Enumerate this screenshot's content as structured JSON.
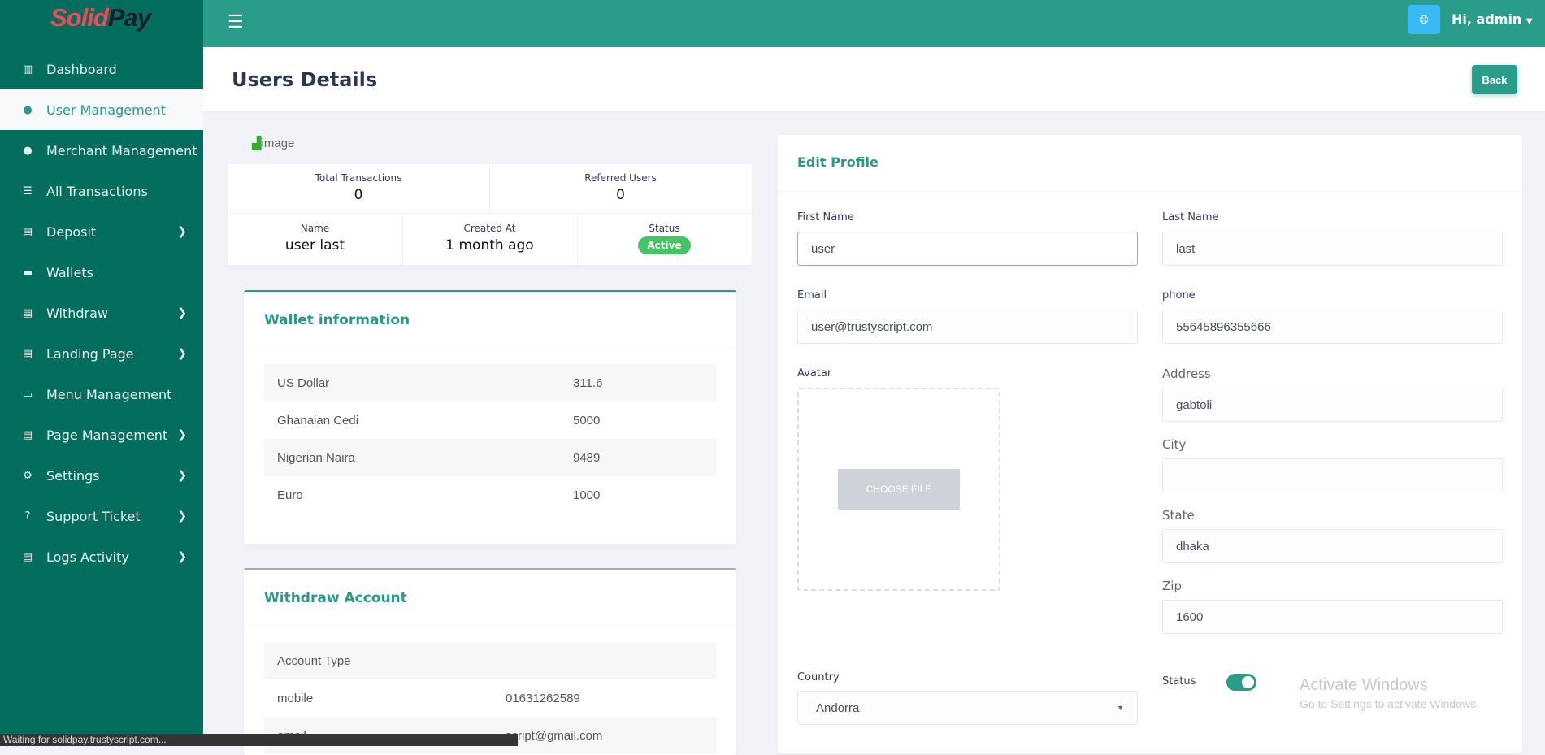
{
  "brand": {
    "logo_part1": "Solid",
    "logo_part2": "Pay"
  },
  "sidebar": {
    "items": [
      {
        "label": "Dashboard",
        "icon": "building-icon",
        "chevron": false
      },
      {
        "label": "User Management",
        "icon": "user-icon",
        "chevron": false,
        "active": true
      },
      {
        "label": "Merchant Management",
        "icon": "user-icon",
        "chevron": false
      },
      {
        "label": "All Transactions",
        "icon": "list-check-icon",
        "chevron": false
      },
      {
        "label": "Deposit",
        "icon": "clipboard-icon",
        "chevron": true
      },
      {
        "label": "Wallets",
        "icon": "wallet-icon",
        "chevron": false
      },
      {
        "label": "Withdraw",
        "icon": "clipboard-icon",
        "chevron": true
      },
      {
        "label": "Landing Page",
        "icon": "clipboard-icon",
        "chevron": true
      },
      {
        "label": "Menu Management",
        "icon": "keyboard-icon",
        "chevron": false
      },
      {
        "label": "Page Management",
        "icon": "clipboard-icon",
        "chevron": true
      },
      {
        "label": "Settings",
        "icon": "cogs-icon",
        "chevron": true
      },
      {
        "label": "Support Ticket",
        "icon": "question-circle-icon",
        "chevron": true
      },
      {
        "label": "Logs Activity",
        "icon": "clipboard-icon",
        "chevron": true
      }
    ]
  },
  "topbar": {
    "user_greeting": "Hi, admin"
  },
  "header": {
    "title": "Users Details",
    "back_label": "Back"
  },
  "profile": {
    "image_alt": "image",
    "total_transactions_label": "Total Transactions",
    "total_transactions": "0",
    "referred_users_label": "Referred Users",
    "referred_users": "0",
    "name_label": "Name",
    "name": "user last",
    "created_label": "Created At",
    "created": "1 month ago",
    "status_label": "Status",
    "status": "Active"
  },
  "wallet": {
    "title": "Wallet information",
    "rows": [
      [
        "US Dollar",
        "311.6"
      ],
      [
        "Ghanaian Cedi",
        "5000"
      ],
      [
        "Nigerian Naira",
        "9489"
      ],
      [
        "Euro",
        "1000"
      ]
    ]
  },
  "withdraw": {
    "title": "Withdraw Account",
    "header": "Account Type",
    "rows": [
      [
        "mobile",
        "01631262589"
      ],
      [
        "email",
        "script@gmail.com"
      ]
    ]
  },
  "edit": {
    "title": "Edit Profile",
    "first_name_label": "First Name",
    "first_name": "user",
    "last_name_label": "Last Name",
    "last_name": "last",
    "email_label": "Email",
    "email": "user@trustyscript.com",
    "phone_label": "phone",
    "phone": "55645896355666",
    "avatar_label": "Avatar",
    "choose_file": "CHOOSE FILE",
    "address_label": "Address",
    "address": "gabtoli",
    "city_label": "City",
    "city": "",
    "state_label": "State",
    "state": "dhaka",
    "zip_label": "Zip",
    "zip": "1600",
    "country_label": "Country",
    "country": "Andorra",
    "status_label": "Status",
    "status_on": true
  },
  "overlay": {
    "activate_title": "Activate Windows",
    "activate_sub": "Go to Settings to activate Windows."
  },
  "browser_status": "Waiting for solidpay.trustyscript.com...",
  "colors": {
    "sidebar": "#046e5e",
    "topbar": "#2a9d8a",
    "accent": "#2a9887",
    "active_badge": "#47c363",
    "logo_red": "#f24a57"
  }
}
